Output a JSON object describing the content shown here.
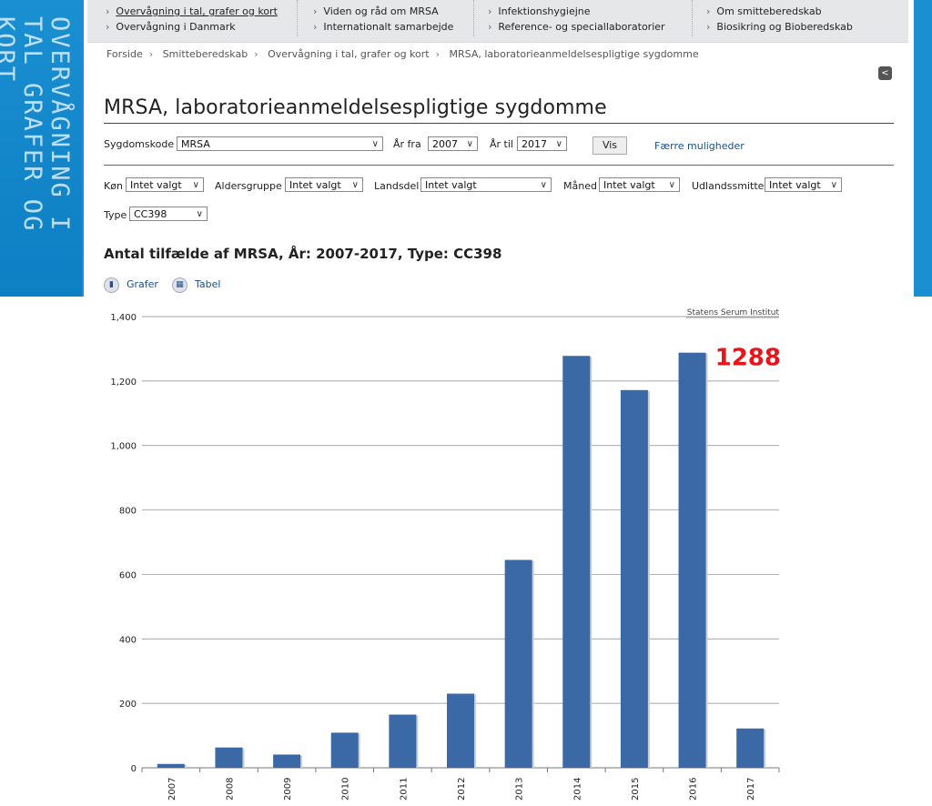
{
  "side_title": "OVERVÅGNING I TAL GRAFER OG KORT",
  "nav": {
    "col1": [
      "Overvågning i tal, grafer og kort",
      "Overvågning i Danmark"
    ],
    "col2": [
      "Viden og råd om MRSA",
      "Internationalt samarbejde"
    ],
    "col3": [
      "Infektionshygiejne",
      "Reference- og speciallaboratorier"
    ],
    "col4": [
      "Om smitteberedskab",
      "Biosikring og Bioberedskab"
    ]
  },
  "breadcrumb": [
    "Forside",
    "Smitteberedskab",
    "Overvågning i tal, grafer og kort",
    "MRSA, laboratorieanmeldelsespligtige sygdomme"
  ],
  "page_title": "MRSA, laboratorieanmeldelsespligtige sygdomme",
  "filters": {
    "sygdomskode_label": "Sygdomskode",
    "sygdomskode_value": "MRSA",
    "aar_fra_label": "År fra",
    "aar_fra_value": "2007",
    "aar_til_label": "År til",
    "aar_til_value": "2017",
    "vis_label": "Vis",
    "faerre_label": "Færre muligheder",
    "koen_label": "Køn",
    "koen_value": "Intet valgt",
    "aldersgruppe_label": "Aldersgruppe",
    "aldersgruppe_value": "Intet valgt",
    "landsdel_label": "Landsdel",
    "landsdel_value": "Intet valgt",
    "maaned_label": "Måned",
    "maaned_value": "Intet valgt",
    "udlandssmitte_label": "Udlandssmitte",
    "udlandssmitte_value": "Intet valgt",
    "type_label": "Type",
    "type_value": "CC398"
  },
  "chart_heading": "Antal tilfælde af MRSA, År: 2007-2017, Type: CC398",
  "view_tabs": {
    "grafer": "Grafer",
    "tabel": "Tabel"
  },
  "chart_data": {
    "type": "bar",
    "categories": [
      "2007",
      "2008",
      "2009",
      "2010",
      "2011",
      "2012",
      "2013",
      "2014",
      "2015",
      "2016",
      "2017"
    ],
    "values": [
      12,
      63,
      41,
      109,
      165,
      230,
      645,
      1278,
      1172,
      1288,
      122
    ],
    "ylim": [
      0,
      1400
    ],
    "yticks": [
      0,
      200,
      400,
      600,
      800,
      1000,
      1200,
      1400
    ],
    "ytick_labels": [
      "0",
      "200",
      "400",
      "600",
      "800",
      "1,000",
      "1,200",
      "1,400"
    ],
    "credit": "Statens Serum Institut",
    "annotation": "1288",
    "bar_color": "#3b69a5",
    "annotation_color": "#e8151b",
    "grid": true
  }
}
